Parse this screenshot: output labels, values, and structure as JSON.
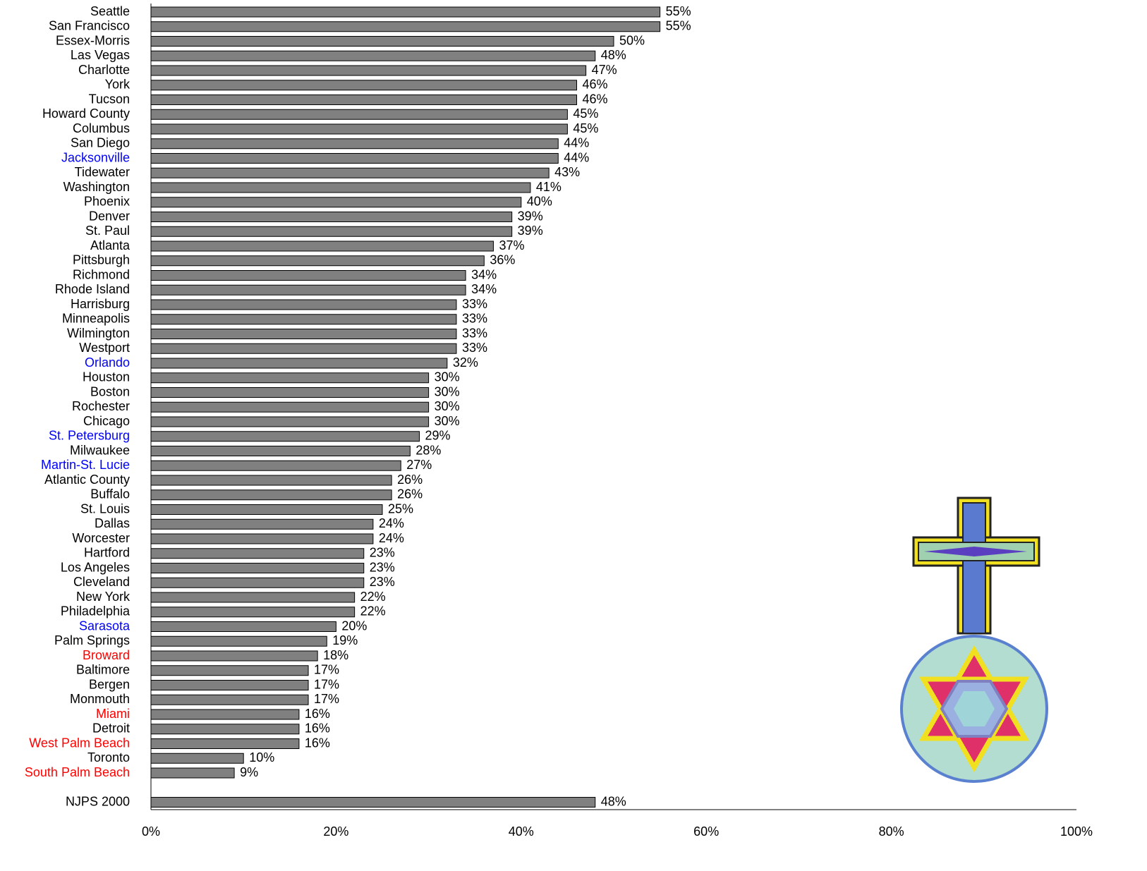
{
  "chart_data": {
    "type": "bar",
    "orientation": "horizontal",
    "categories": [
      "Seattle",
      "San Francisco",
      "Essex-Morris",
      "Las Vegas",
      "Charlotte",
      "York",
      "Tucson",
      "Howard County",
      "Columbus",
      "San Diego",
      "Jacksonville",
      "Tidewater",
      "Washington",
      "Phoenix",
      "Denver",
      "St. Paul",
      "Atlanta",
      "Pittsburgh",
      "Richmond",
      "Rhode Island",
      "Harrisburg",
      "Minneapolis",
      "Wilmington",
      "Westport",
      "Orlando",
      "Houston",
      "Boston",
      "Rochester",
      "Chicago",
      "St. Petersburg",
      "Milwaukee",
      "Martin-St. Lucie",
      "Atlantic County",
      "Buffalo",
      "St. Louis",
      "Dallas",
      "Worcester",
      "Hartford",
      "Los Angeles",
      "Cleveland",
      "New York",
      "Philadelphia",
      "Sarasota",
      "Palm Springs",
      "Broward",
      "Baltimore",
      "Bergen",
      "Monmouth",
      "Miami",
      "Detroit",
      "West Palm Beach",
      "Toronto",
      "South Palm Beach",
      null,
      "NJPS 2000"
    ],
    "values": [
      55,
      55,
      50,
      48,
      47,
      46,
      46,
      45,
      45,
      44,
      44,
      43,
      41,
      40,
      39,
      39,
      37,
      36,
      34,
      34,
      33,
      33,
      33,
      33,
      32,
      30,
      30,
      30,
      30,
      29,
      28,
      27,
      26,
      26,
      25,
      24,
      24,
      23,
      23,
      23,
      22,
      22,
      20,
      19,
      18,
      17,
      17,
      17,
      16,
      16,
      16,
      10,
      9,
      null,
      48
    ],
    "value_labels": [
      "55%",
      "55%",
      "50%",
      "48%",
      "47%",
      "46%",
      "46%",
      "45%",
      "45%",
      "44%",
      "44%",
      "43%",
      "41%",
      "40%",
      "39%",
      "39%",
      "37%",
      "36%",
      "34%",
      "34%",
      "33%",
      "33%",
      "33%",
      "33%",
      "32%",
      "30%",
      "30%",
      "30%",
      "30%",
      "29%",
      "28%",
      "27%",
      "26%",
      "26%",
      "25%",
      "24%",
      "24%",
      "23%",
      "23%",
      "23%",
      "22%",
      "22%",
      "20%",
      "19%",
      "18%",
      "17%",
      "17%",
      "17%",
      "16%",
      "16%",
      "16%",
      "10%",
      "9%",
      null,
      "48%"
    ],
    "label_colors": [
      "#000000",
      "#000000",
      "#000000",
      "#000000",
      "#000000",
      "#000000",
      "#000000",
      "#000000",
      "#000000",
      "#000000",
      "#0000ff",
      "#000000",
      "#000000",
      "#000000",
      "#000000",
      "#000000",
      "#000000",
      "#000000",
      "#000000",
      "#000000",
      "#000000",
      "#000000",
      "#000000",
      "#000000",
      "#0000ff",
      "#000000",
      "#000000",
      "#000000",
      "#000000",
      "#0000ff",
      "#000000",
      "#0000ff",
      "#000000",
      "#000000",
      "#000000",
      "#000000",
      "#000000",
      "#000000",
      "#000000",
      "#000000",
      "#000000",
      "#000000",
      "#0000ff",
      "#000000",
      "#ff0000",
      "#000000",
      "#000000",
      "#000000",
      "#ff0000",
      "#000000",
      "#ff0000",
      "#000000",
      "#ff0000",
      null,
      "#000000"
    ],
    "color": "#808080",
    "xlim": [
      0,
      100
    ],
    "xticks": [
      {
        "value": 0,
        "label": "0%"
      },
      {
        "value": 20,
        "label": "20%"
      },
      {
        "value": 40,
        "label": "40%"
      },
      {
        "value": 60,
        "label": "60%"
      },
      {
        "value": 80,
        "label": "80%"
      },
      {
        "value": 100,
        "label": "100%"
      }
    ],
    "grid": false
  }
}
